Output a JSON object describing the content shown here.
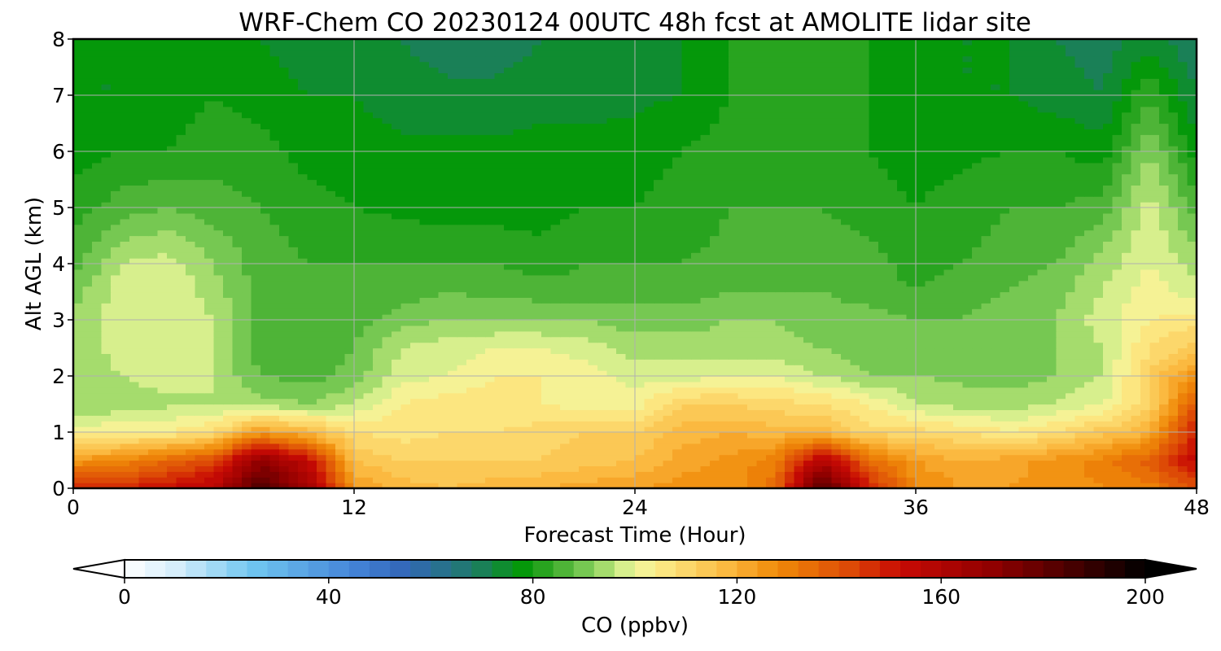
{
  "chart_data": {
    "type": "heatmap",
    "title": "WRF-Chem CO  20230124 00UTC 48h fcst at AMOLITE lidar site",
    "xlabel": "Forecast Time (Hour)",
    "ylabel": "Alt AGL (km)",
    "xlim": [
      0,
      48
    ],
    "ylim": [
      0,
      8
    ],
    "xticks": [
      0,
      12,
      24,
      36,
      48
    ],
    "xtick_labels": [
      "0",
      "12",
      "24",
      "36",
      "48"
    ],
    "yticks": [
      0,
      1,
      2,
      3,
      4,
      5,
      6,
      7,
      8
    ],
    "ytick_labels": [
      "0",
      "1",
      "2",
      "3",
      "4",
      "5",
      "6",
      "7",
      "8"
    ],
    "grid": true,
    "x": [
      0,
      2,
      4,
      6,
      8,
      10,
      12,
      14,
      16,
      18,
      20,
      22,
      24,
      26,
      28,
      30,
      32,
      34,
      36,
      38,
      40,
      42,
      44,
      46,
      48
    ],
    "y": [
      0,
      0.5,
      1,
      1.5,
      2,
      2.5,
      3,
      3.5,
      4,
      5,
      6,
      7,
      8
    ],
    "z": [
      [
        150,
        148,
        152,
        158,
        185,
        165,
        125,
        118,
        116,
        118,
        120,
        122,
        124,
        126,
        125,
        135,
        185,
        150,
        128,
        124,
        124,
        126,
        128,
        130,
        140
      ],
      [
        125,
        128,
        135,
        142,
        170,
        155,
        116,
        112,
        112,
        112,
        112,
        114,
        116,
        122,
        125,
        130,
        160,
        135,
        124,
        120,
        122,
        126,
        130,
        138,
        155
      ],
      [
        102,
        104,
        104,
        108,
        125,
        118,
        108,
        106,
        108,
        108,
        110,
        112,
        112,
        118,
        120,
        118,
        118,
        110,
        110,
        108,
        104,
        108,
        114,
        120,
        150
      ],
      [
        92,
        93,
        95,
        96,
        94,
        92,
        96,
        104,
        106,
        106,
        104,
        102,
        102,
        112,
        112,
        110,
        108,
        104,
        96,
        94,
        94,
        96,
        100,
        110,
        140
      ],
      [
        92,
        96,
        98,
        96,
        88,
        86,
        90,
        98,
        100,
        104,
        104,
        102,
        98,
        98,
        100,
        100,
        96,
        92,
        92,
        91,
        90,
        92,
        96,
        112,
        128
      ],
      [
        93,
        98,
        100,
        96,
        86,
        84,
        88,
        96,
        98,
        100,
        100,
        98,
        94,
        94,
        94,
        93,
        92,
        90,
        88,
        90,
        90,
        92,
        96,
        108,
        114
      ],
      [
        93,
        98,
        100,
        96,
        86,
        85,
        86,
        90,
        92,
        92,
        92,
        92,
        90,
        90,
        92,
        92,
        90,
        90,
        88,
        88,
        90,
        92,
        98,
        104,
        106
      ],
      [
        90,
        98,
        100,
        94,
        86,
        84,
        85,
        86,
        88,
        87,
        86,
        86,
        86,
        86,
        88,
        88,
        88,
        86,
        84,
        86,
        88,
        90,
        96,
        102,
        98
      ],
      [
        86,
        96,
        98,
        92,
        86,
        84,
        84,
        84,
        84,
        84,
        82,
        84,
        84,
        84,
        85,
        86,
        86,
        86,
        82,
        84,
        86,
        88,
        94,
        100,
        94
      ],
      [
        82,
        86,
        88,
        86,
        84,
        82,
        80,
        79,
        78,
        78,
        78,
        80,
        80,
        82,
        84,
        84,
        84,
        82,
        80,
        82,
        84,
        84,
        86,
        98,
        86
      ],
      [
        78,
        80,
        80,
        82,
        82,
        78,
        78,
        77,
        77,
        77,
        78,
        78,
        78,
        80,
        82,
        82,
        82,
        80,
        78,
        79,
        80,
        80,
        78,
        92,
        78
      ],
      [
        76,
        76,
        78,
        80,
        78,
        76,
        76,
        74,
        73,
        73,
        74,
        74,
        75,
        76,
        80,
        82,
        80,
        80,
        78,
        76,
        76,
        74,
        72,
        84,
        72
      ],
      [
        76,
        76,
        78,
        78,
        76,
        74,
        74,
        72,
        70,
        70,
        72,
        72,
        72,
        76,
        80,
        82,
        80,
        80,
        78,
        76,
        76,
        72,
        70,
        74,
        68
      ]
    ],
    "colorbar": {
      "label": "CO  (ppbv)",
      "ticks": [
        0,
        40,
        80,
        120,
        160,
        200
      ],
      "tick_labels": [
        "0",
        "40",
        "80",
        "120",
        "160",
        "200"
      ],
      "range": [
        0,
        200
      ],
      "extend": "both",
      "colors": [
        {
          "v": 0,
          "c": "#ffffff"
        },
        {
          "v": 10,
          "c": "#d6eefb"
        },
        {
          "v": 25,
          "c": "#70c6f0"
        },
        {
          "v": 45,
          "c": "#4484d8"
        },
        {
          "v": 55,
          "c": "#3266b8"
        },
        {
          "v": 68,
          "c": "#1f7a6a"
        },
        {
          "v": 78,
          "c": "#05980a"
        },
        {
          "v": 84,
          "c": "#3aaa2a"
        },
        {
          "v": 90,
          "c": "#76c852"
        },
        {
          "v": 96,
          "c": "#bce67a"
        },
        {
          "v": 100,
          "c": "#f2f8a0"
        },
        {
          "v": 106,
          "c": "#fce680"
        },
        {
          "v": 118,
          "c": "#fbb940"
        },
        {
          "v": 128,
          "c": "#f08a08"
        },
        {
          "v": 142,
          "c": "#dd4a06"
        },
        {
          "v": 152,
          "c": "#c80a04"
        },
        {
          "v": 170,
          "c": "#900000"
        },
        {
          "v": 185,
          "c": "#4a0000"
        },
        {
          "v": 200,
          "c": "#000000"
        }
      ]
    }
  }
}
